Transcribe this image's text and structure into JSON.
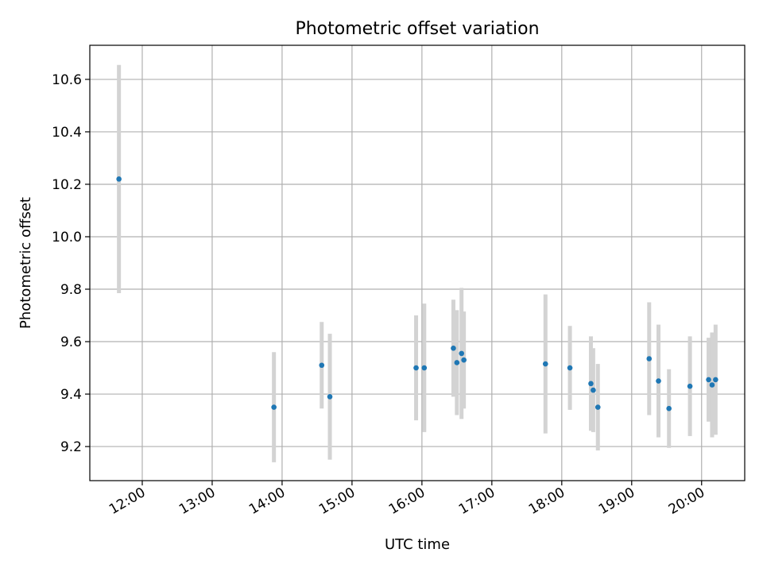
{
  "chart_data": {
    "type": "scatter",
    "title": "Photometric offset variation",
    "xlabel": "UTC time",
    "ylabel": "Photometric offset",
    "grid": true,
    "xlim": [
      "11:15",
      "20:37"
    ],
    "ylim": [
      9.07,
      10.73
    ],
    "x_ticks": [
      "12:00",
      "13:00",
      "14:00",
      "15:00",
      "16:00",
      "17:00",
      "18:00",
      "19:00",
      "20:00"
    ],
    "y_ticks": [
      "9.2",
      "9.4",
      "9.6",
      "9.8",
      "10.0",
      "10.2",
      "10.4",
      "10.6"
    ],
    "colors": {
      "point": "#1f77b4",
      "errorbar": "#d3d3d3",
      "grid": "#b0b0b0"
    },
    "points": [
      {
        "x": "11:40",
        "y": 10.22,
        "err": 0.435
      },
      {
        "x": "13:53",
        "y": 9.35,
        "err": 0.21
      },
      {
        "x": "14:34",
        "y": 9.51,
        "err": 0.165
      },
      {
        "x": "14:41",
        "y": 9.39,
        "err": 0.24
      },
      {
        "x": "15:55",
        "y": 9.5,
        "err": 0.2
      },
      {
        "x": "16:02",
        "y": 9.5,
        "err": 0.245
      },
      {
        "x": "16:27",
        "y": 9.575,
        "err": 0.185
      },
      {
        "x": "16:30",
        "y": 9.52,
        "err": 0.2
      },
      {
        "x": "16:34",
        "y": 9.555,
        "err": 0.25
      },
      {
        "x": "16:36",
        "y": 9.53,
        "err": 0.185
      },
      {
        "x": "17:46",
        "y": 9.515,
        "err": 0.265
      },
      {
        "x": "18:07",
        "y": 9.5,
        "err": 0.16
      },
      {
        "x": "18:25",
        "y": 9.44,
        "err": 0.18
      },
      {
        "x": "18:27",
        "y": 9.415,
        "err": 0.16
      },
      {
        "x": "18:31",
        "y": 9.35,
        "err": 0.165
      },
      {
        "x": "19:15",
        "y": 9.535,
        "err": 0.215
      },
      {
        "x": "19:23",
        "y": 9.45,
        "err": 0.215
      },
      {
        "x": "19:32",
        "y": 9.345,
        "err": 0.15
      },
      {
        "x": "19:50",
        "y": 9.43,
        "err": 0.19
      },
      {
        "x": "20:06",
        "y": 9.455,
        "err": 0.16
      },
      {
        "x": "20:09",
        "y": 9.435,
        "err": 0.2
      },
      {
        "x": "20:12",
        "y": 9.455,
        "err": 0.21
      }
    ]
  }
}
